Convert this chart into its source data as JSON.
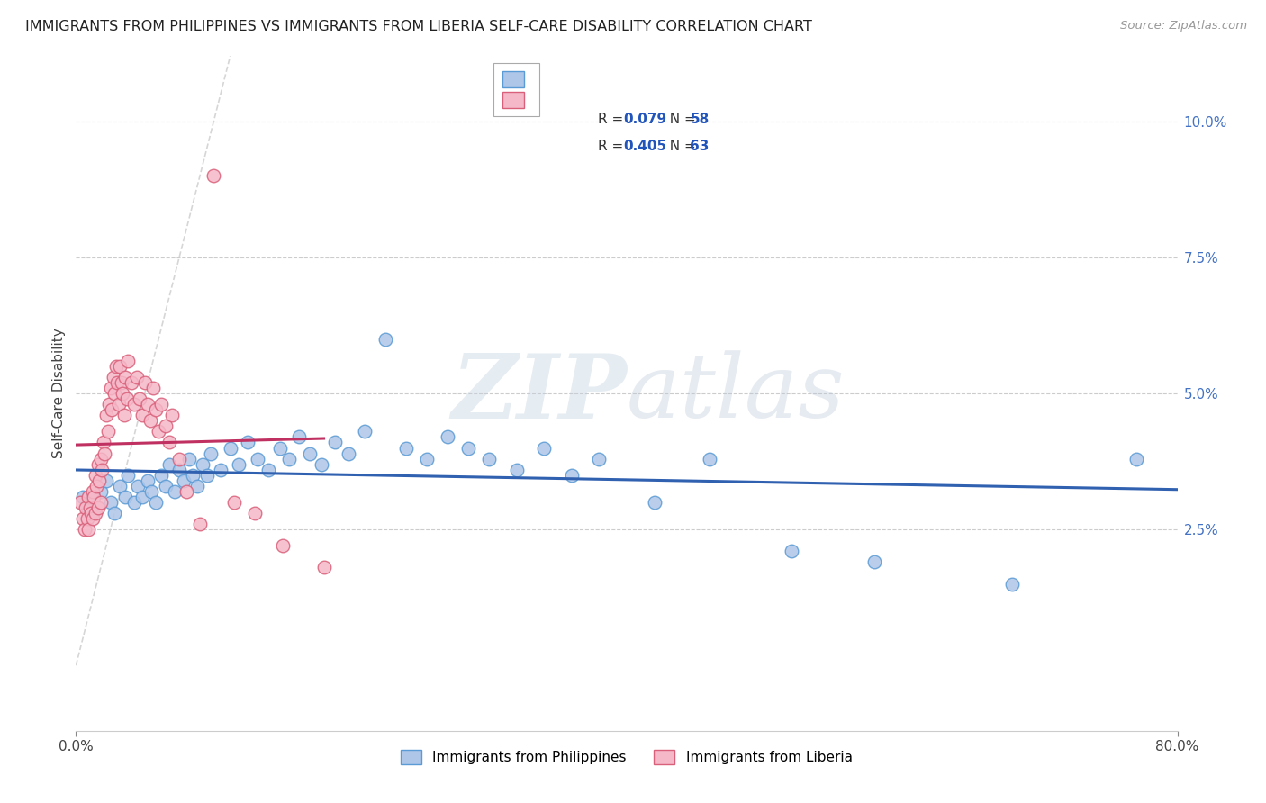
{
  "title": "IMMIGRANTS FROM PHILIPPINES VS IMMIGRANTS FROM LIBERIA SELF-CARE DISABILITY CORRELATION CHART",
  "source": "Source: ZipAtlas.com",
  "ylabel": "Self-Care Disability",
  "right_yticks": [
    "2.5%",
    "5.0%",
    "7.5%",
    "10.0%"
  ],
  "right_ytick_vals": [
    0.025,
    0.05,
    0.075,
    0.1
  ],
  "xlim": [
    0.0,
    0.8
  ],
  "ylim": [
    -0.012,
    0.112
  ],
  "philippines_color": "#aec6e8",
  "philippines_edge": "#5b9bd5",
  "liberia_color": "#f5b8c8",
  "liberia_edge": "#d9607a",
  "trendline_philippines": "#3060b0",
  "trendline_liberia": "#c03060",
  "diagonal_color": "#cccccc",
  "watermark_color": "#c8d8e8",
  "legend_r1_text": "R = 0.079   N = 58",
  "legend_r2_text": "R = 0.405   N = 63",
  "phil_scatter_x": [
    0.005,
    0.008,
    0.012,
    0.018,
    0.022,
    0.025,
    0.028,
    0.032,
    0.036,
    0.038,
    0.042,
    0.045,
    0.048,
    0.052,
    0.055,
    0.058,
    0.062,
    0.065,
    0.068,
    0.072,
    0.075,
    0.078,
    0.082,
    0.085,
    0.088,
    0.092,
    0.095,
    0.098,
    0.105,
    0.112,
    0.118,
    0.125,
    0.132,
    0.14,
    0.148,
    0.155,
    0.162,
    0.17,
    0.178,
    0.188,
    0.198,
    0.21,
    0.225,
    0.24,
    0.255,
    0.27,
    0.285,
    0.3,
    0.32,
    0.34,
    0.36,
    0.38,
    0.42,
    0.46,
    0.52,
    0.58,
    0.68,
    0.77
  ],
  "phil_scatter_y": [
    0.031,
    0.029,
    0.028,
    0.032,
    0.034,
    0.03,
    0.028,
    0.033,
    0.031,
    0.035,
    0.03,
    0.033,
    0.031,
    0.034,
    0.032,
    0.03,
    0.035,
    0.033,
    0.037,
    0.032,
    0.036,
    0.034,
    0.038,
    0.035,
    0.033,
    0.037,
    0.035,
    0.039,
    0.036,
    0.04,
    0.037,
    0.041,
    0.038,
    0.036,
    0.04,
    0.038,
    0.042,
    0.039,
    0.037,
    0.041,
    0.039,
    0.043,
    0.06,
    0.04,
    0.038,
    0.042,
    0.04,
    0.038,
    0.036,
    0.04,
    0.035,
    0.038,
    0.03,
    0.038,
    0.021,
    0.019,
    0.015,
    0.038
  ],
  "lib_scatter_x": [
    0.003,
    0.005,
    0.006,
    0.007,
    0.008,
    0.009,
    0.009,
    0.01,
    0.011,
    0.012,
    0.012,
    0.013,
    0.014,
    0.014,
    0.015,
    0.016,
    0.016,
    0.017,
    0.018,
    0.018,
    0.019,
    0.02,
    0.021,
    0.022,
    0.023,
    0.024,
    0.025,
    0.026,
    0.027,
    0.028,
    0.029,
    0.03,
    0.031,
    0.032,
    0.033,
    0.034,
    0.035,
    0.036,
    0.037,
    0.038,
    0.04,
    0.042,
    0.044,
    0.046,
    0.048,
    0.05,
    0.052,
    0.054,
    0.056,
    0.058,
    0.06,
    0.062,
    0.065,
    0.068,
    0.07,
    0.075,
    0.08,
    0.09,
    0.1,
    0.115,
    0.13,
    0.15,
    0.18
  ],
  "lib_scatter_y": [
    0.03,
    0.027,
    0.025,
    0.029,
    0.027,
    0.031,
    0.025,
    0.029,
    0.028,
    0.032,
    0.027,
    0.031,
    0.035,
    0.028,
    0.033,
    0.037,
    0.029,
    0.034,
    0.038,
    0.03,
    0.036,
    0.041,
    0.039,
    0.046,
    0.043,
    0.048,
    0.051,
    0.047,
    0.053,
    0.05,
    0.055,
    0.052,
    0.048,
    0.055,
    0.052,
    0.05,
    0.046,
    0.053,
    0.049,
    0.056,
    0.052,
    0.048,
    0.053,
    0.049,
    0.046,
    0.052,
    0.048,
    0.045,
    0.051,
    0.047,
    0.043,
    0.048,
    0.044,
    0.041,
    0.046,
    0.038,
    0.032,
    0.026,
    0.09,
    0.03,
    0.028,
    0.022,
    0.018
  ]
}
